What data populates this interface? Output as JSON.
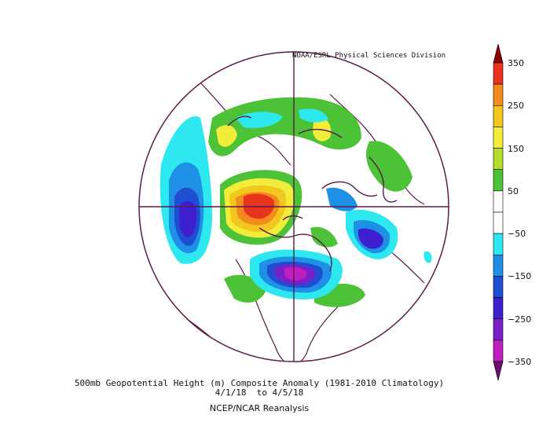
{
  "header": {
    "credit": "NOAA/ESRL Physical Sciences Division"
  },
  "caption": {
    "title": "500mb Geopotential Height (m) Composite Anomaly (1981-2010 Climatology)",
    "date_range": "4/1/18  to 4/5/18",
    "source": "NCEP/NCAR Reanalysis"
  },
  "colorbar": {
    "labels": [
      "350",
      "250",
      "150",
      "50",
      "−50",
      "−150",
      "−250",
      "−350"
    ],
    "colors": [
      "#8b0000",
      "#e8331d",
      "#f28c1e",
      "#f2c81e",
      "#f2ec3a",
      "#b4dc2c",
      "#4cc236",
      "#ffffff",
      "#ffffff",
      "#2ee8f0",
      "#1e90e6",
      "#1f4fd0",
      "#3f20d0",
      "#7a1fc8",
      "#c01fc0",
      "#6e0f6e"
    ]
  },
  "map": {
    "projection": "north-polar-stereographic",
    "anomalies": [
      {
        "name": "positive-center-greenland",
        "peak_m": 320,
        "color": "#e8331d"
      },
      {
        "name": "negative-center-eastern-north-america",
        "peak_m": -300,
        "color": "#7a1fc8"
      },
      {
        "name": "negative-center-north-pacific",
        "peak_m": -230,
        "color": "#3f20d0"
      },
      {
        "name": "negative-center-east-asia",
        "peak_m": -200,
        "color": "#3f20d0"
      }
    ]
  }
}
